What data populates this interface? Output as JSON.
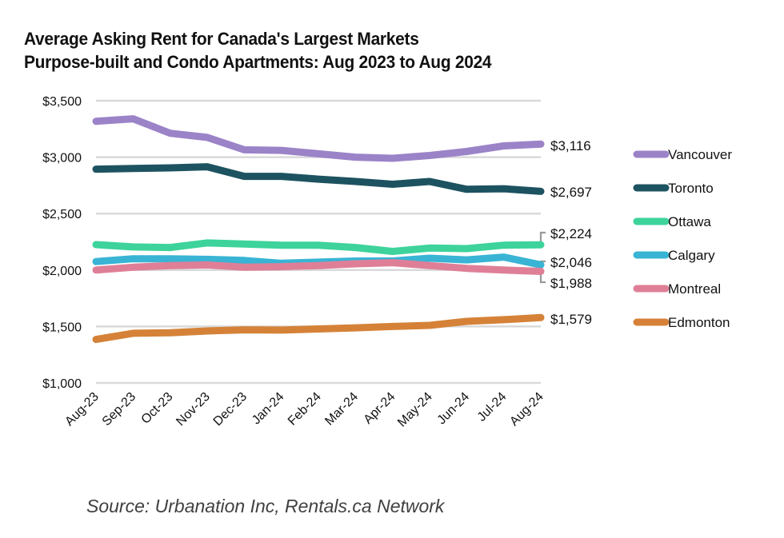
{
  "chart_data": {
    "type": "line",
    "title": "Average Asking Rent for Canada's Largest Markets",
    "subtitle": "Purpose-built and Condo Apartments: Aug 2023 to Aug 2024",
    "xlabel": "",
    "ylabel": "",
    "ylim": [
      1000,
      3500
    ],
    "yticks": [
      1000,
      1500,
      2000,
      2500,
      3000,
      3500
    ],
    "ytick_labels": [
      "$1,000",
      "$1,500",
      "$2,000",
      "$2,500",
      "$3,000",
      "$3,500"
    ],
    "grid": true,
    "legend_position": "right",
    "categories": [
      "Aug-23",
      "Sep-23",
      "Oct-23",
      "Nov-23",
      "Dec-23",
      "Jan-24",
      "Feb-24",
      "Mar-24",
      "Apr-24",
      "May-24",
      "Jun-24",
      "Jul-24",
      "Aug-24"
    ],
    "series": [
      {
        "name": "Vancouver",
        "color": "#9b83c8",
        "end_label": "$3,116",
        "values": [
          3318,
          3340,
          3212,
          3175,
          3065,
          3060,
          3030,
          3000,
          2990,
          3015,
          3050,
          3100,
          3116
        ]
      },
      {
        "name": "Toronto",
        "color": "#1d5360",
        "end_label": "$2,697",
        "values": [
          2894,
          2900,
          2905,
          2915,
          2830,
          2830,
          2805,
          2785,
          2760,
          2785,
          2715,
          2720,
          2697
        ]
      },
      {
        "name": "Ottawa",
        "color": "#3dd39b",
        "end_label": "$2,224",
        "values": [
          2225,
          2205,
          2200,
          2240,
          2230,
          2220,
          2220,
          2200,
          2165,
          2195,
          2190,
          2220,
          2224
        ]
      },
      {
        "name": "Calgary",
        "color": "#39b4d4",
        "end_label": "$2,046",
        "values": [
          2075,
          2100,
          2100,
          2095,
          2085,
          2060,
          2070,
          2080,
          2080,
          2105,
          2090,
          2115,
          2046
        ]
      },
      {
        "name": "Montreal",
        "color": "#df7f97",
        "end_label": "$1,988",
        "values": [
          2000,
          2025,
          2040,
          2045,
          2025,
          2030,
          2040,
          2055,
          2065,
          2040,
          2015,
          2000,
          1988
        ]
      },
      {
        "name": "Edmonton",
        "color": "#d58238",
        "end_label": "$1,579",
        "values": [
          1385,
          1440,
          1445,
          1460,
          1470,
          1468,
          1478,
          1488,
          1500,
          1510,
          1545,
          1560,
          1579
        ]
      }
    ],
    "source": "Source: Urbanation Inc, Rentals.ca Network"
  }
}
